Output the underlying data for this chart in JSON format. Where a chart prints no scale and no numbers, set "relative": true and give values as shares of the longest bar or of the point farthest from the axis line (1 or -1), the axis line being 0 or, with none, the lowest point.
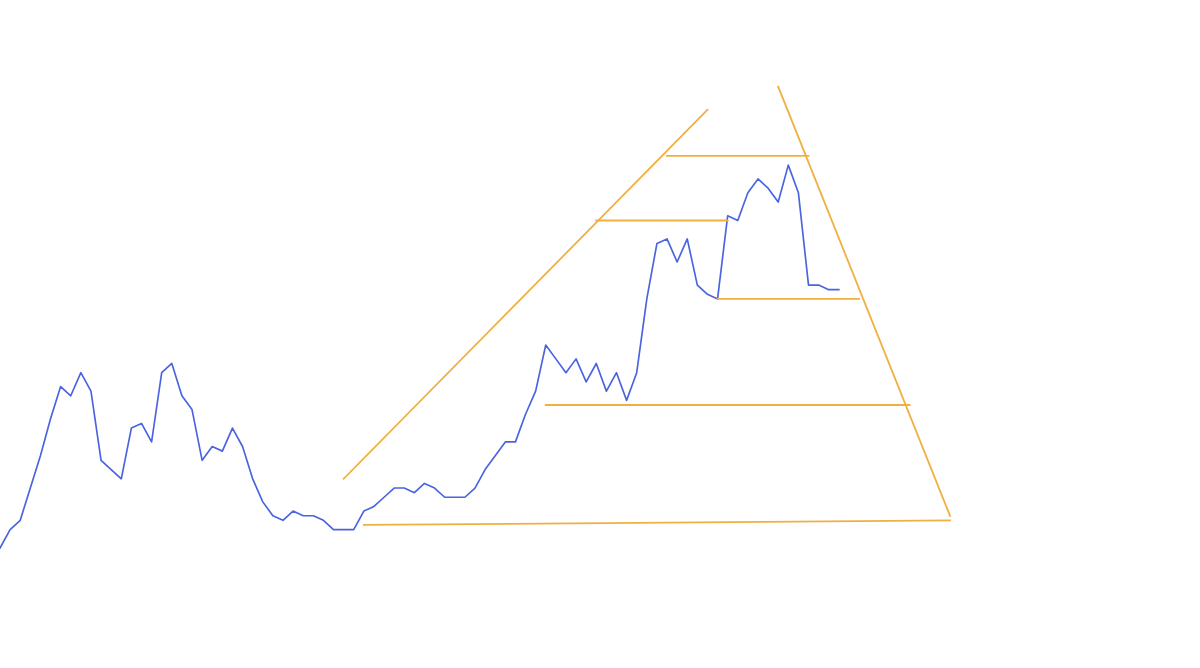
{
  "chart_data": {
    "type": "line",
    "relative": true,
    "categories": [
      null,
      null,
      null,
      null,
      null,
      null,
      null,
      null,
      null,
      null,
      null,
      null,
      null,
      null,
      null,
      null,
      null,
      null,
      null,
      null,
      null,
      null,
      null,
      null,
      null,
      null,
      null,
      null,
      null,
      null,
      null,
      null,
      null,
      null,
      null,
      null,
      null,
      null,
      null,
      null,
      null,
      null,
      null,
      null,
      null,
      null,
      null,
      null,
      null,
      null,
      null,
      null,
      null,
      null,
      null,
      null,
      null,
      null,
      null,
      null,
      null,
      null,
      null,
      null,
      null,
      null,
      null,
      null,
      null,
      null,
      null,
      null,
      null,
      null,
      null,
      null,
      null,
      null,
      null,
      null,
      null,
      null,
      null,
      null,
      null,
      null,
      null,
      null,
      null,
      null,
      null,
      null,
      null,
      null,
      null
    ],
    "series": [
      {
        "color": "#4a63e0",
        "values": [
          0,
          0.04,
          0.06,
          0.13,
          0.2,
          0.28,
          0.35,
          0.33,
          0.38,
          0.34,
          0.19,
          0.17,
          0.15,
          0.26,
          0.27,
          0.23,
          0.38,
          0.4,
          0.33,
          0.3,
          0.19,
          0.22,
          0.21,
          0.26,
          0.22,
          0.15,
          0.1,
          0.07,
          0.06,
          0.08,
          0.07,
          0.07,
          0.06,
          0.04,
          0.04,
          0.04,
          0.08,
          0.09,
          0.11,
          0.13,
          0.13,
          0.12,
          0.14,
          0.13,
          0.11,
          0.11,
          0.11,
          0.13,
          0.17,
          0.2,
          0.23,
          0.23,
          0.29,
          0.34,
          0.44,
          0.41,
          0.38,
          0.41,
          0.36,
          0.4,
          0.34,
          0.38,
          0.32,
          0.38,
          0.54,
          0.66,
          0.67,
          0.62,
          0.67,
          0.57,
          0.55,
          0.54,
          0.72,
          0.71,
          0.77,
          0.8,
          0.78,
          0.75,
          0.83,
          0.77,
          0.57,
          0.57,
          0.56,
          0.56,
          null,
          null,
          null,
          null,
          null,
          null,
          null,
          null,
          null,
          null,
          null
        ]
      },
      {
        "color": "#f0b040",
        "values": [
          null,
          null,
          null,
          null,
          null,
          null,
          null,
          null,
          null,
          null,
          null,
          null,
          null,
          null,
          null,
          null,
          null,
          null,
          null,
          null,
          null,
          null,
          null,
          null,
          null,
          null,
          null,
          null,
          null,
          null,
          null,
          null,
          null,
          null,
          0.15,
          null,
          null,
          null,
          null,
          null,
          null,
          null,
          null,
          null,
          null,
          null,
          null,
          null,
          null,
          null,
          null,
          null,
          null,
          null,
          null,
          null,
          null,
          null,
          null,
          null,
          null,
          null,
          null,
          null,
          null,
          null,
          null,
          null,
          null,
          null,
          0.95,
          null,
          null,
          null,
          null,
          null,
          null,
          null,
          null,
          null,
          null,
          null,
          null,
          null,
          null,
          null,
          null,
          null,
          null,
          null,
          null,
          null,
          null,
          null,
          null
        ]
      },
      {
        "color": "#f0b040",
        "values": [
          null,
          null,
          null,
          null,
          null,
          null,
          null,
          null,
          null,
          null,
          null,
          null,
          null,
          null,
          null,
          null,
          null,
          null,
          null,
          null,
          null,
          null,
          null,
          null,
          null,
          null,
          null,
          null,
          null,
          null,
          null,
          null,
          null,
          null,
          null,
          null,
          null,
          null,
          null,
          null,
          null,
          null,
          null,
          null,
          null,
          null,
          null,
          null,
          null,
          null,
          null,
          null,
          null,
          null,
          null,
          null,
          null,
          null,
          null,
          null,
          null,
          null,
          null,
          null,
          null,
          null,
          null,
          null,
          null,
          null,
          null,
          null,
          null,
          null,
          null,
          null,
          null,
          1,
          null,
          null,
          null,
          null,
          null,
          null,
          null,
          null,
          null,
          null,
          null,
          null,
          null,
          null,
          null,
          null,
          0.07
        ]
      },
      {
        "color": "#f0b040",
        "values": [
          null,
          null,
          null,
          null,
          null,
          null,
          null,
          null,
          null,
          null,
          null,
          null,
          null,
          null,
          null,
          null,
          null,
          null,
          null,
          null,
          null,
          null,
          null,
          null,
          null,
          null,
          null,
          null,
          null,
          null,
          null,
          null,
          null,
          null,
          null,
          null,
          0.05,
          null,
          null,
          null,
          null,
          null,
          null,
          null,
          null,
          null,
          null,
          null,
          null,
          null,
          null,
          null,
          null,
          null,
          null,
          null,
          null,
          null,
          null,
          null,
          null,
          null,
          null,
          null,
          null,
          null,
          null,
          null,
          null,
          null,
          null,
          null,
          null,
          null,
          null,
          null,
          null,
          null,
          null,
          null,
          null,
          null,
          null,
          null,
          null,
          null,
          null,
          null,
          null,
          null,
          null,
          null,
          null,
          null,
          0.06
        ]
      },
      {
        "color": "#f0b040",
        "values": [
          null,
          null,
          null,
          null,
          null,
          null,
          null,
          null,
          null,
          null,
          null,
          null,
          null,
          null,
          null,
          null,
          null,
          null,
          null,
          null,
          null,
          null,
          null,
          null,
          null,
          null,
          null,
          null,
          null,
          null,
          null,
          null,
          null,
          null,
          null,
          null,
          null,
          null,
          null,
          null,
          null,
          null,
          null,
          null,
          null,
          null,
          null,
          null,
          null,
          null,
          null,
          null,
          null,
          null,
          0.31,
          null,
          null,
          null,
          null,
          null,
          null,
          null,
          null,
          null,
          null,
          null,
          null,
          null,
          null,
          null,
          null,
          null,
          null,
          null,
          null,
          null,
          null,
          null,
          null,
          null,
          null,
          null,
          null,
          null,
          null,
          null,
          null,
          null,
          null,
          null,
          0.31,
          null,
          null,
          null,
          null
        ]
      },
      {
        "color": "#f0b040",
        "values": [
          null,
          null,
          null,
          null,
          null,
          null,
          null,
          null,
          null,
          null,
          null,
          null,
          null,
          null,
          null,
          null,
          null,
          null,
          null,
          null,
          null,
          null,
          null,
          null,
          null,
          null,
          null,
          null,
          null,
          null,
          null,
          null,
          null,
          null,
          null,
          null,
          null,
          null,
          null,
          null,
          null,
          null,
          null,
          null,
          null,
          null,
          null,
          null,
          null,
          null,
          null,
          null,
          null,
          null,
          null,
          null,
          null,
          null,
          null,
          null,
          null,
          null,
          null,
          null,
          null,
          null,
          null,
          null,
          null,
          null,
          null,
          0.54,
          null,
          null,
          null,
          null,
          null,
          null,
          null,
          null,
          null,
          null,
          null,
          null,
          null,
          0.54,
          null,
          null,
          null,
          null,
          null,
          null,
          null,
          null,
          null
        ]
      },
      {
        "color": "#f0b040",
        "values": [
          null,
          null,
          null,
          null,
          null,
          null,
          null,
          null,
          null,
          null,
          null,
          null,
          null,
          null,
          null,
          null,
          null,
          null,
          null,
          null,
          null,
          null,
          null,
          null,
          null,
          null,
          null,
          null,
          null,
          null,
          null,
          null,
          null,
          null,
          null,
          null,
          null,
          null,
          null,
          null,
          null,
          null,
          null,
          null,
          null,
          null,
          null,
          null,
          null,
          null,
          null,
          null,
          null,
          null,
          null,
          null,
          null,
          null,
          null,
          0.71,
          null,
          null,
          null,
          null,
          null,
          null,
          null,
          null,
          null,
          null,
          null,
          null,
          0.71,
          null,
          null,
          null,
          null,
          null,
          null,
          null,
          null,
          null,
          null,
          null,
          null,
          null,
          null,
          null,
          null,
          null,
          null,
          null,
          null,
          null,
          null
        ]
      },
      {
        "color": "#f0b040",
        "values": [
          null,
          null,
          null,
          null,
          null,
          null,
          null,
          null,
          null,
          null,
          null,
          null,
          null,
          null,
          null,
          null,
          null,
          null,
          null,
          null,
          null,
          null,
          null,
          null,
          null,
          null,
          null,
          null,
          null,
          null,
          null,
          null,
          null,
          null,
          null,
          null,
          null,
          null,
          null,
          null,
          null,
          null,
          null,
          null,
          null,
          null,
          null,
          null,
          null,
          null,
          null,
          null,
          null,
          null,
          null,
          null,
          null,
          null,
          null,
          null,
          null,
          null,
          null,
          null,
          null,
          null,
          0.85,
          null,
          null,
          null,
          null,
          null,
          null,
          null,
          null,
          null,
          null,
          null,
          null,
          null,
          0.85,
          null,
          null,
          null,
          null,
          null,
          null,
          null,
          null,
          null,
          null,
          null,
          null,
          null,
          null
        ]
      }
    ]
  }
}
